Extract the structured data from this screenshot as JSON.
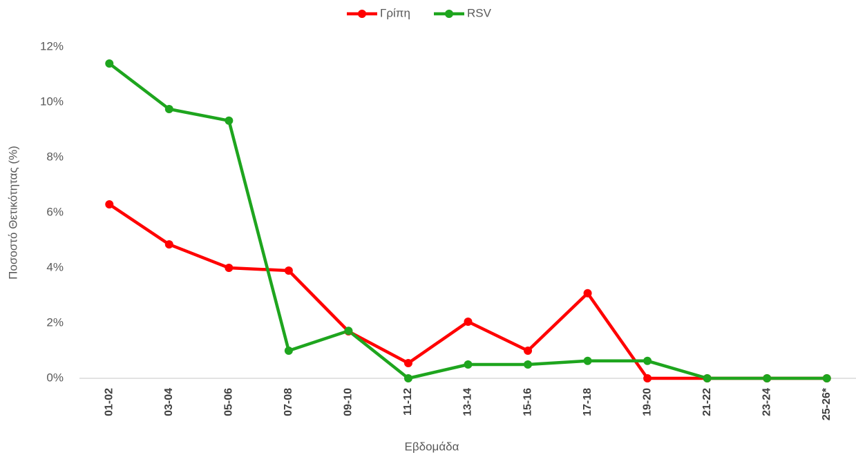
{
  "chart_data": {
    "type": "line",
    "x_label": "Εβδομάδα",
    "y_label": "Ποσοστό Θετικότητας (%)",
    "categories": [
      "01-02",
      "03-04",
      "05-06",
      "07-08",
      "09-10",
      "11-12",
      "13-14",
      "15-16",
      "17-18",
      "19-20",
      "21-22",
      "23-24",
      "25-26*"
    ],
    "series": [
      {
        "name": "Γρίπη",
        "color": "#ff0000",
        "values": [
          6.3,
          4.85,
          4.0,
          3.9,
          1.7,
          0.55,
          2.05,
          1.0,
          3.08,
          0,
          0,
          0,
          0
        ]
      },
      {
        "name": "RSV",
        "color": "#1ea51e",
        "values": [
          11.4,
          9.75,
          9.33,
          1.0,
          1.72,
          0,
          0.5,
          0.5,
          0.63,
          0.63,
          0,
          0,
          0
        ]
      }
    ],
    "ylim": [
      0,
      12
    ],
    "yticks": [
      {
        "value": 0,
        "label": "0%"
      },
      {
        "value": 2,
        "label": "2%"
      },
      {
        "value": 4,
        "label": "4%"
      },
      {
        "value": 6,
        "label": "6%"
      },
      {
        "value": 8,
        "label": "8%"
      },
      {
        "value": 10,
        "label": "10%"
      },
      {
        "value": 12,
        "label": "12%"
      }
    ],
    "grid": false,
    "legend": "top"
  }
}
